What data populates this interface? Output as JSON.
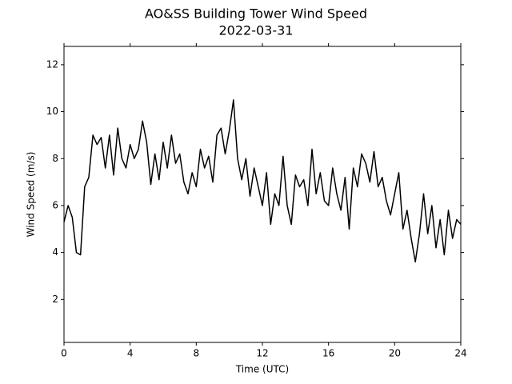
{
  "chart_data": {
    "type": "line",
    "title": "AO&SS Building Tower Wind Speed",
    "subtitle": "2022-03-31",
    "x_label": "Time (UTC)",
    "y_label": "Wind Speed (m/s)",
    "x": [
      0,
      0.25,
      0.5,
      0.75,
      1,
      1.25,
      1.5,
      1.75,
      2,
      2.25,
      2.5,
      2.75,
      3,
      3.25,
      3.5,
      3.75,
      4,
      4.25,
      4.5,
      4.75,
      5,
      5.25,
      5.5,
      5.75,
      6,
      6.25,
      6.5,
      6.75,
      7,
      7.25,
      7.5,
      7.75,
      8,
      8.25,
      8.5,
      8.75,
      9,
      9.25,
      9.5,
      9.75,
      10,
      10.25,
      10.5,
      10.75,
      11,
      11.25,
      11.5,
      11.75,
      12,
      12.25,
      12.5,
      12.75,
      13,
      13.25,
      13.5,
      13.75,
      14,
      14.25,
      14.5,
      14.75,
      15,
      15.25,
      15.5,
      15.75,
      16,
      16.25,
      16.5,
      16.75,
      17,
      17.25,
      17.5,
      17.75,
      18,
      18.25,
      18.5,
      18.75,
      19,
      19.25,
      19.5,
      19.75,
      20,
      20.25,
      20.5,
      20.75,
      21,
      21.25,
      21.5,
      21.75,
      22,
      22.25,
      22.5,
      22.75,
      23,
      23.25,
      23.5,
      23.75,
      24
    ],
    "series": [
      {
        "name": "Wind Speed",
        "color": "#000000",
        "values": [
          5.3,
          6.0,
          5.5,
          4.0,
          3.9,
          6.8,
          7.2,
          9.0,
          8.6,
          8.9,
          7.6,
          9.0,
          7.3,
          9.3,
          8.0,
          7.6,
          8.6,
          8.0,
          8.4,
          9.6,
          8.7,
          6.9,
          8.2,
          7.1,
          8.7,
          7.6,
          9.0,
          7.8,
          8.2,
          7.0,
          6.5,
          7.4,
          6.8,
          8.4,
          7.6,
          8.1,
          7.0,
          9.0,
          9.3,
          8.2,
          9.2,
          10.5,
          8.0,
          7.1,
          8.0,
          6.4,
          7.6,
          6.8,
          6.0,
          7.4,
          5.2,
          6.5,
          6.0,
          8.1,
          6.0,
          5.2,
          7.3,
          6.8,
          7.1,
          6.0,
          8.4,
          6.5,
          7.4,
          6.2,
          6.0,
          7.6,
          6.5,
          5.8,
          7.2,
          5.0,
          7.6,
          6.8,
          8.2,
          7.8,
          7.0,
          8.3,
          6.8,
          7.2,
          6.2,
          5.6,
          6.5,
          7.4,
          5.0,
          5.8,
          4.6,
          3.6,
          4.8,
          6.5,
          4.8,
          6.0,
          4.2,
          5.4,
          3.9,
          5.8,
          4.6,
          5.4,
          5.2
        ]
      }
    ],
    "xlim": [
      0,
      24
    ],
    "xticks": [
      0,
      4,
      8,
      12,
      16,
      20,
      24
    ],
    "ylim": [
      0.17,
      12.78
    ],
    "yticks": [
      2,
      4,
      6,
      8,
      10,
      12
    ],
    "grid": false
  }
}
